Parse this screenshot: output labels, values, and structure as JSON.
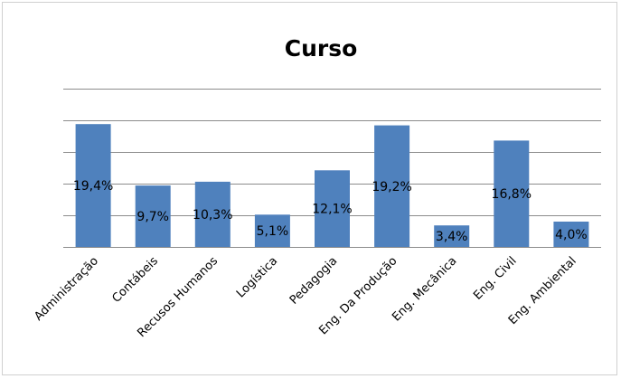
{
  "chart_data": {
    "type": "bar",
    "title": "Curso",
    "xlabel": "",
    "ylabel": "",
    "categories": [
      "Administração",
      "Contábeis",
      "Recusos Humanos",
      "Logística",
      "Pedagogia",
      "Eng. Da Produção",
      "Eng. Mecânica",
      "Eng. Civil",
      "Eng. Ambiental"
    ],
    "values": [
      19.4,
      9.7,
      10.3,
      5.1,
      12.1,
      19.2,
      3.4,
      16.8,
      4.0
    ],
    "data_labels": [
      "19,4%",
      "9,7%",
      "10,3%",
      "5,1%",
      "12,1%",
      "19,2%",
      "3,4%",
      "16,8%",
      "4,0%"
    ],
    "ylim": [
      0,
      25
    ],
    "grid": true,
    "legend": "none",
    "bar_color": "#4f81bd"
  }
}
